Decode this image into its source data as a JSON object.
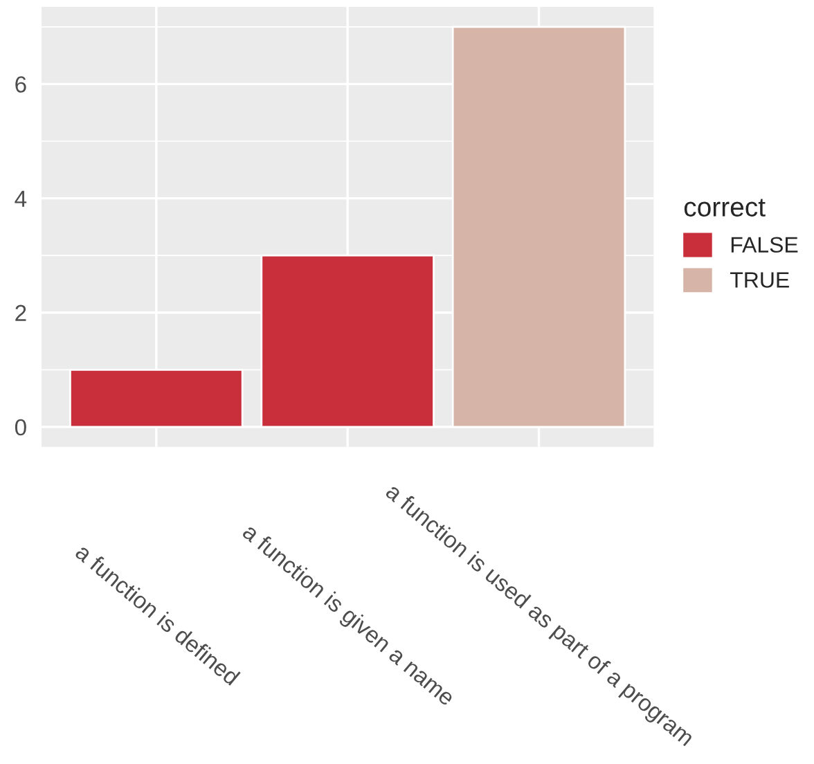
{
  "chart_data": {
    "type": "bar",
    "categories": [
      "a function is defined",
      "a function is given a name",
      "a function is used as part of a program"
    ],
    "series": [
      {
        "name": "FALSE",
        "color": "#c82f3a",
        "values": [
          1,
          3,
          null
        ]
      },
      {
        "name": "TRUE",
        "color": "#d6b4a7",
        "values": [
          null,
          null,
          7
        ]
      }
    ],
    "legend_title": "correct",
    "legend": "right",
    "ylim": [
      -0.35,
      7.35
    ],
    "yticks": [
      0,
      2,
      4,
      6
    ],
    "grid": true
  }
}
